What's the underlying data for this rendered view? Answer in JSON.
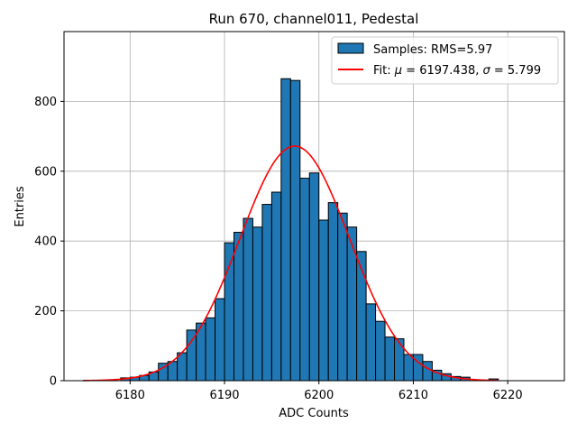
{
  "chart_data": {
    "type": "bar",
    "title": "Run 670, channel011, Pedestal",
    "xlabel": "ADC Counts",
    "ylabel": "Entries",
    "xlim": [
      6173,
      6226
    ],
    "ylim": [
      0,
      1000
    ],
    "xticks": [
      6180,
      6190,
      6200,
      6210,
      6220
    ],
    "yticks": [
      0,
      200,
      400,
      600,
      800
    ],
    "grid": true,
    "legend_position": "top-right",
    "bar_color": "#1f77b4",
    "bar_edge_color": "#000000",
    "fit_color": "#ff0000",
    "histogram": {
      "name": "Samples: RMS=5.97",
      "bin_width": 1,
      "bin_starts": [
        6179,
        6180,
        6181,
        6182,
        6183,
        6184,
        6185,
        6186,
        6187,
        6188,
        6189,
        6190,
        6191,
        6192,
        6193,
        6194,
        6195,
        6196,
        6197,
        6198,
        6199,
        6200,
        6201,
        6202,
        6203,
        6204,
        6205,
        6206,
        6207,
        6208,
        6209,
        6210,
        6211,
        6212,
        6213,
        6214,
        6215,
        6216,
        6217,
        6218
      ],
      "counts": [
        8,
        10,
        15,
        25,
        50,
        55,
        80,
        145,
        165,
        180,
        235,
        395,
        425,
        465,
        440,
        505,
        540,
        865,
        860,
        580,
        595,
        460,
        510,
        480,
        440,
        370,
        220,
        170,
        125,
        120,
        75,
        75,
        55,
        30,
        20,
        12,
        10,
        0,
        0,
        5
      ]
    },
    "fit": {
      "name": "Fit: μ = 6197.438, σ = 5.799",
      "mu": 6197.438,
      "sigma": 5.799,
      "amplitude": 672,
      "x_range": [
        6175,
        6219
      ]
    }
  },
  "legend": {
    "samples_label": "Samples: RMS=5.97",
    "fit_label_prefix": "Fit: ",
    "fit_mu_symbol": "μ",
    "fit_mu_value": " = 6197.438, ",
    "fit_sigma_symbol": "σ",
    "fit_sigma_value": " = 5.799"
  }
}
